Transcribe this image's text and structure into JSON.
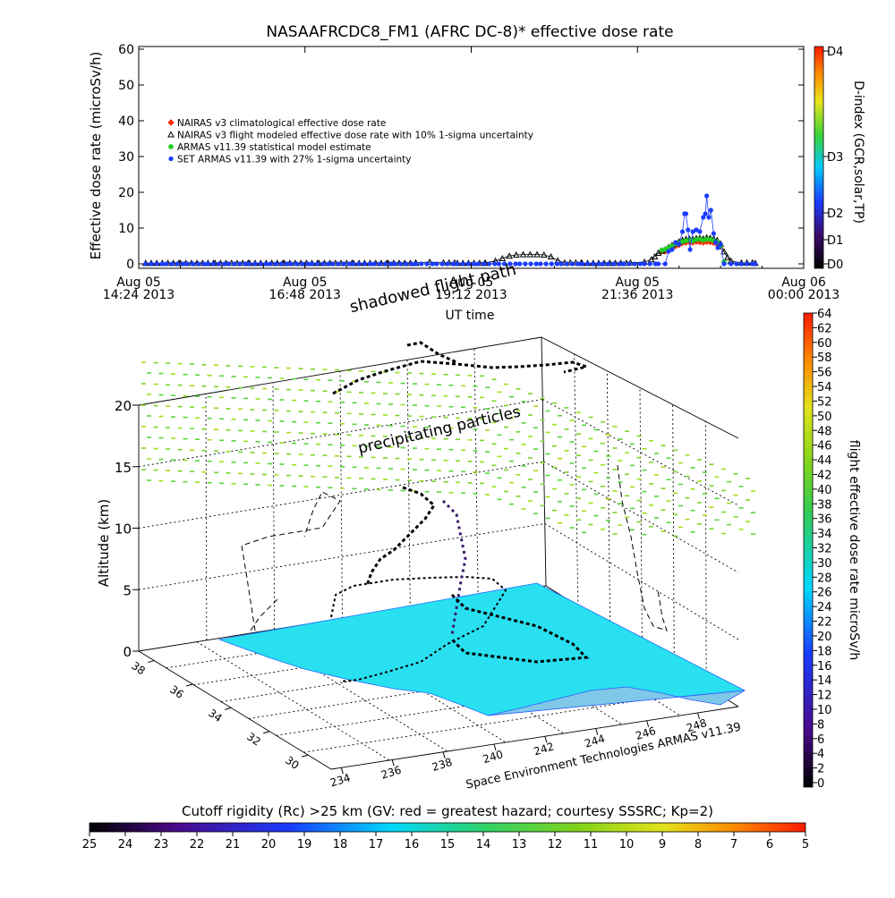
{
  "chart_data": [
    {
      "type": "scatter",
      "title": "NASAAFRCDC8_FM1 (AFRC DC-8)* effective dose rate",
      "ylabel": "Effective dose rate (microSv/h)",
      "xlabel": "UT time",
      "ylim": [
        0,
        60
      ],
      "yticks": [
        "0",
        "10",
        "20",
        "30",
        "40",
        "50",
        "60"
      ],
      "xlim_hours": [
        14.4,
        24.0
      ],
      "xticks": [
        {
          "hour": 14.4,
          "line1": "Aug 05",
          "line2": "14:24 2013"
        },
        {
          "hour": 16.8,
          "line1": "Aug 05",
          "line2": "16:48 2013"
        },
        {
          "hour": 19.2,
          "line1": "Aug 05",
          "line2": "19:12 2013"
        },
        {
          "hour": 21.6,
          "line1": "Aug 05",
          "line2": "21:36 2013"
        },
        {
          "hour": 24.0,
          "line1": "Aug 06",
          "line2": "00:00 2013"
        }
      ],
      "legend_position": "upper-left",
      "series": [
        {
          "name": "NAIRAS v3 climatological effective dose rate",
          "color": "#ff2a00",
          "marker": "diamond",
          "points": [
            [
              21.95,
              3.5
            ],
            [
              22.0,
              3.5
            ],
            [
              22.05,
              4.2
            ],
            [
              22.1,
              4.6
            ],
            [
              22.15,
              5.0
            ],
            [
              22.2,
              5.3
            ],
            [
              22.25,
              5.8
            ],
            [
              22.3,
              6.0
            ],
            [
              22.35,
              6.1
            ],
            [
              22.4,
              6.0
            ],
            [
              22.45,
              6.2
            ],
            [
              22.5,
              6.1
            ],
            [
              22.55,
              6.0
            ],
            [
              22.6,
              6.2
            ],
            [
              22.65,
              6.1
            ],
            [
              22.7,
              5.9
            ],
            [
              22.75,
              5.6
            ],
            [
              22.8,
              4.8
            ]
          ]
        },
        {
          "name": "NAIRAS v3 flight modeled effective dose rate with 10% 1-sigma uncertainty",
          "color": "#000000",
          "marker": "triangle",
          "points": [
            [
              14.5,
              0.2
            ],
            [
              15.0,
              0.2
            ],
            [
              15.5,
              0.2
            ],
            [
              16.0,
              0.2
            ],
            [
              16.5,
              0.2
            ],
            [
              17.0,
              0.2
            ],
            [
              17.5,
              0.2
            ],
            [
              18.0,
              0.2
            ],
            [
              18.4,
              0.3
            ],
            [
              18.6,
              0.5
            ],
            [
              18.8,
              0.3
            ],
            [
              19.0,
              0.2
            ],
            [
              19.4,
              0.3
            ],
            [
              19.55,
              0.8
            ],
            [
              19.65,
              1.5
            ],
            [
              19.75,
              2.2
            ],
            [
              19.85,
              2.5
            ],
            [
              19.95,
              2.6
            ],
            [
              20.05,
              2.6
            ],
            [
              20.15,
              2.6
            ],
            [
              20.25,
              2.5
            ],
            [
              20.35,
              2.0
            ],
            [
              20.45,
              0.9
            ],
            [
              20.55,
              0.3
            ],
            [
              20.8,
              0.2
            ],
            [
              21.2,
              0.2
            ],
            [
              21.5,
              0.3
            ],
            [
              21.7,
              0.5
            ],
            [
              21.8,
              1.2
            ],
            [
              21.85,
              2.0
            ],
            [
              21.9,
              3.0
            ],
            [
              21.95,
              3.6
            ],
            [
              22.0,
              4.0
            ],
            [
              22.05,
              4.6
            ],
            [
              22.1,
              5.2
            ],
            [
              22.15,
              5.6
            ],
            [
              22.2,
              6.2
            ],
            [
              22.25,
              6.6
            ],
            [
              22.3,
              6.9
            ],
            [
              22.35,
              7.0
            ],
            [
              22.4,
              6.8
            ],
            [
              22.45,
              7.1
            ],
            [
              22.5,
              7.2
            ],
            [
              22.55,
              7.0
            ],
            [
              22.6,
              7.3
            ],
            [
              22.65,
              7.2
            ],
            [
              22.7,
              7.0
            ],
            [
              22.75,
              6.6
            ],
            [
              22.8,
              5.6
            ],
            [
              22.85,
              3.4
            ],
            [
              22.9,
              1.8
            ],
            [
              22.95,
              0.8
            ],
            [
              23.1,
              0.3
            ],
            [
              23.3,
              0.2
            ]
          ]
        },
        {
          "name": "ARMAS v11.39 statistical model estimate",
          "color": "#22cc22",
          "marker": "star",
          "points": [
            [
              21.95,
              3.8
            ],
            [
              22.0,
              4.0
            ],
            [
              22.05,
              4.5
            ],
            [
              22.1,
              5.0
            ],
            [
              22.15,
              5.6
            ],
            [
              22.2,
              5.8
            ],
            [
              22.25,
              6.2
            ],
            [
              22.3,
              6.5
            ],
            [
              22.35,
              6.6
            ],
            [
              22.4,
              6.4
            ],
            [
              22.45,
              6.8
            ],
            [
              22.5,
              6.9
            ],
            [
              22.55,
              6.6
            ],
            [
              22.6,
              6.9
            ],
            [
              22.65,
              6.8
            ],
            [
              22.7,
              6.5
            ],
            [
              22.75,
              6.1
            ],
            [
              22.8,
              5.0
            ],
            [
              22.85,
              0.5
            ]
          ]
        },
        {
          "name": "SET ARMAS v11.39 with 27% 1-sigma uncertainty",
          "color": "#1a3cff",
          "marker": "circle",
          "points": [
            [
              14.5,
              0.0
            ],
            [
              14.8,
              0.0
            ],
            [
              15.1,
              0.0
            ],
            [
              15.4,
              0.0
            ],
            [
              15.7,
              0.0
            ],
            [
              16.0,
              0.0
            ],
            [
              16.3,
              0.0
            ],
            [
              16.6,
              0.0
            ],
            [
              16.9,
              0.0
            ],
            [
              17.2,
              0.0
            ],
            [
              17.5,
              0.0
            ],
            [
              17.8,
              0.0
            ],
            [
              18.1,
              0.0
            ],
            [
              18.4,
              0.0
            ],
            [
              18.7,
              0.0
            ],
            [
              19.0,
              0.0
            ],
            [
              19.3,
              0.0
            ],
            [
              19.6,
              0.0
            ],
            [
              19.9,
              0.0
            ],
            [
              20.2,
              0.0
            ],
            [
              20.5,
              0.0
            ],
            [
              20.8,
              0.0
            ],
            [
              21.1,
              0.0
            ],
            [
              21.4,
              0.0
            ],
            [
              21.7,
              0.0
            ],
            [
              21.9,
              0.0
            ],
            [
              22.0,
              0.0
            ],
            [
              22.05,
              3.5
            ],
            [
              22.1,
              4.0
            ],
            [
              22.15,
              6.0
            ],
            [
              22.2,
              5.5
            ],
            [
              22.25,
              9.0
            ],
            [
              22.28,
              14.0
            ],
            [
              22.3,
              14.0
            ],
            [
              22.33,
              9.5
            ],
            [
              22.36,
              4.0
            ],
            [
              22.4,
              9.0
            ],
            [
              22.45,
              9.5
            ],
            [
              22.5,
              9.0
            ],
            [
              22.55,
              13.0
            ],
            [
              22.58,
              14.0
            ],
            [
              22.6,
              19.0
            ],
            [
              22.63,
              13.0
            ],
            [
              22.66,
              15.0
            ],
            [
              22.7,
              8.5
            ],
            [
              22.73,
              6.0
            ],
            [
              22.76,
              4.5
            ],
            [
              22.8,
              5.5
            ],
            [
              22.85,
              0.0
            ],
            [
              22.95,
              0.0
            ],
            [
              23.1,
              0.0
            ],
            [
              23.3,
              0.0
            ]
          ]
        }
      ],
      "colorbar": {
        "label": "D-index (GCR,solar,TP)",
        "ticks": [
          "D0",
          "D1",
          "D2",
          "D3",
          "D4"
        ]
      },
      "annotations": [
        "shadowed flight path"
      ]
    },
    {
      "type": "scatter",
      "subtype": "3d-flight-track",
      "zlabel": "Altitude (km)",
      "zticks": [
        "0",
        "5",
        "10",
        "15",
        "20"
      ],
      "lat_ticks": [
        "38",
        "36",
        "34",
        "32",
        "30"
      ],
      "lon_ticks": [
        "234",
        "236",
        "238",
        "240",
        "242",
        "244",
        "246",
        "248"
      ],
      "annotations": [
        "precipitating particles",
        "Space Environment Technologies ARMAS v11.39"
      ],
      "colorbar": {
        "label": "flight effective dose rate microSv/h",
        "ticks": [
          "0",
          "2",
          "4",
          "6",
          "8",
          "10",
          "12",
          "14",
          "16",
          "18",
          "20",
          "22",
          "24",
          "26",
          "28",
          "30",
          "32",
          "34",
          "36",
          "38",
          "40",
          "42",
          "44",
          "46",
          "48",
          "50",
          "52",
          "54",
          "56",
          "58",
          "60",
          "62",
          "64"
        ]
      },
      "surface_color": "#29e0f0"
    },
    {
      "type": "colorbar",
      "title": "Cutoff rigidity (Rc) >25 km (GV: red = greatest hazard; courtesy SSSRC; Kp=2)",
      "ticks": [
        "25",
        "24",
        "23",
        "22",
        "21",
        "20",
        "19",
        "18",
        "17",
        "16",
        "15",
        "14",
        "13",
        "12",
        "11",
        "10",
        "9",
        "8",
        "7",
        "6",
        "5"
      ]
    }
  ]
}
